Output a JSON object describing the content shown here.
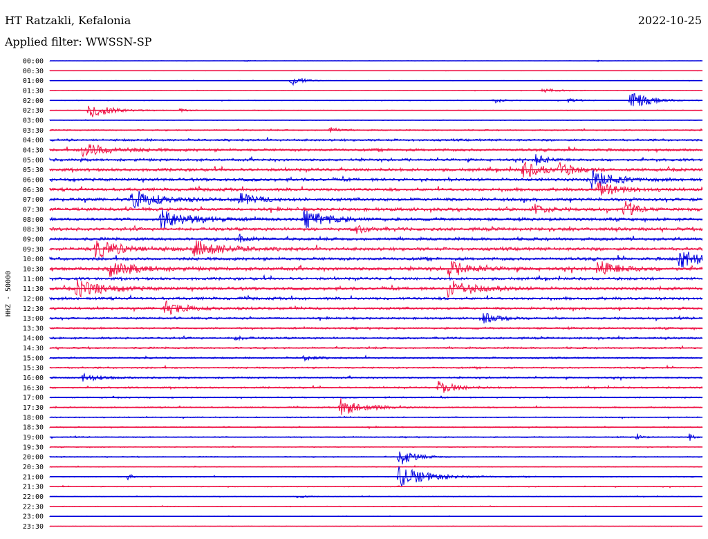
{
  "header": {
    "station": "HT Ratzakli, Kefalonia",
    "filter": "Applied filter: WWSSN-SP",
    "date": "2022-10-25"
  },
  "chart_data": {
    "type": "line",
    "subtype": "helicorder",
    "ylabel": "HHZ - 50000",
    "row_labels": [
      "00:00",
      "00:30",
      "01:00",
      "01:30",
      "02:00",
      "02:30",
      "03:00",
      "03:30",
      "04:00",
      "04:30",
      "05:00",
      "05:30",
      "06:00",
      "06:30",
      "07:00",
      "07:30",
      "08:00",
      "08:30",
      "09:00",
      "09:30",
      "10:00",
      "10:30",
      "11:00",
      "11:30",
      "12:00",
      "12:30",
      "13:00",
      "13:30",
      "14:00",
      "14:30",
      "15:00",
      "15:30",
      "16:00",
      "16:30",
      "17:00",
      "17:30",
      "18:00",
      "18:30",
      "19:00",
      "19:30",
      "20:00",
      "20:30",
      "21:00",
      "21:30",
      "22:00",
      "22:30",
      "23:00",
      "23:30"
    ],
    "colors": {
      "even_rows": "#0000dd",
      "odd_rows": "#ee1144"
    },
    "noise_level": [
      0.2,
      0.2,
      0.3,
      0.3,
      0.4,
      0.4,
      0.4,
      0.8,
      1.3,
      1.6,
      1.5,
      1.8,
      1.8,
      1.8,
      1.9,
      1.9,
      1.8,
      1.9,
      1.8,
      1.9,
      1.8,
      2.0,
      1.6,
      1.8,
      1.6,
      1.5,
      1.3,
      1.2,
      1.2,
      1.1,
      1.0,
      1.0,
      1.0,
      1.0,
      0.8,
      0.8,
      0.7,
      0.7,
      0.7,
      0.6,
      0.6,
      0.5,
      0.6,
      0.5,
      0.4,
      0.4,
      0.3,
      0.3
    ],
    "events": [
      {
        "row": 0,
        "pos": 0.3,
        "amp": 1.5,
        "dur": 0.004
      },
      {
        "row": 0,
        "pos": 0.84,
        "amp": 1.5,
        "dur": 0.004
      },
      {
        "row": 2,
        "pos": 0.37,
        "amp": 9.0,
        "dur": 0.015
      },
      {
        "row": 3,
        "pos": 0.755,
        "amp": 3.0,
        "dur": 0.025
      },
      {
        "row": 4,
        "pos": 0.68,
        "amp": 4.5,
        "dur": 0.012
      },
      {
        "row": 4,
        "pos": 0.795,
        "amp": 4.0,
        "dur": 0.01
      },
      {
        "row": 4,
        "pos": 0.89,
        "amp": 16.0,
        "dur": 0.025
      },
      {
        "row": 5,
        "pos": 0.06,
        "amp": 12.0,
        "dur": 0.03
      },
      {
        "row": 5,
        "pos": 0.2,
        "amp": 3.0,
        "dur": 0.01
      },
      {
        "row": 7,
        "pos": 0.43,
        "amp": 5.0,
        "dur": 0.01
      },
      {
        "row": 9,
        "pos": 0.05,
        "amp": 10.0,
        "dur": 0.04
      },
      {
        "row": 10,
        "pos": 0.745,
        "amp": 8.0,
        "dur": 0.015
      },
      {
        "row": 11,
        "pos": 0.725,
        "amp": 12.0,
        "dur": 0.025
      },
      {
        "row": 11,
        "pos": 0.78,
        "amp": 10.0,
        "dur": 0.02
      },
      {
        "row": 12,
        "pos": 0.83,
        "amp": 14.0,
        "dur": 0.03
      },
      {
        "row": 13,
        "pos": 0.84,
        "amp": 10.0,
        "dur": 0.03
      },
      {
        "row": 14,
        "pos": 0.125,
        "amp": 14.0,
        "dur": 0.035
      },
      {
        "row": 14,
        "pos": 0.29,
        "amp": 8.0,
        "dur": 0.025
      },
      {
        "row": 15,
        "pos": 0.74,
        "amp": 10.0,
        "dur": 0.015
      },
      {
        "row": 15,
        "pos": 0.88,
        "amp": 12.0,
        "dur": 0.015
      },
      {
        "row": 16,
        "pos": 0.17,
        "amp": 14.0,
        "dur": 0.04
      },
      {
        "row": 16,
        "pos": 0.39,
        "amp": 12.0,
        "dur": 0.035
      },
      {
        "row": 17,
        "pos": 0.47,
        "amp": 6.0,
        "dur": 0.015
      },
      {
        "row": 18,
        "pos": 0.29,
        "amp": 6.0,
        "dur": 0.015
      },
      {
        "row": 19,
        "pos": 0.07,
        "amp": 12.0,
        "dur": 0.04
      },
      {
        "row": 19,
        "pos": 0.22,
        "amp": 12.0,
        "dur": 0.04
      },
      {
        "row": 20,
        "pos": 0.965,
        "amp": 14.0,
        "dur": 0.035
      },
      {
        "row": 21,
        "pos": 0.09,
        "amp": 10.0,
        "dur": 0.04
      },
      {
        "row": 21,
        "pos": 0.61,
        "amp": 12.0,
        "dur": 0.03
      },
      {
        "row": 21,
        "pos": 0.84,
        "amp": 12.0,
        "dur": 0.03
      },
      {
        "row": 23,
        "pos": 0.04,
        "amp": 12.0,
        "dur": 0.04
      },
      {
        "row": 23,
        "pos": 0.61,
        "amp": 12.0,
        "dur": 0.04
      },
      {
        "row": 25,
        "pos": 0.175,
        "amp": 10.0,
        "dur": 0.03
      },
      {
        "row": 26,
        "pos": 0.665,
        "amp": 8.0,
        "dur": 0.02
      },
      {
        "row": 28,
        "pos": 0.285,
        "amp": 4.0,
        "dur": 0.01
      },
      {
        "row": 30,
        "pos": 0.39,
        "amp": 5.0,
        "dur": 0.015
      },
      {
        "row": 32,
        "pos": 0.05,
        "amp": 6.0,
        "dur": 0.025
      },
      {
        "row": 33,
        "pos": 0.595,
        "amp": 10.0,
        "dur": 0.025
      },
      {
        "row": 35,
        "pos": 0.445,
        "amp": 12.0,
        "dur": 0.035
      },
      {
        "row": 38,
        "pos": 0.9,
        "amp": 5.0,
        "dur": 0.006
      },
      {
        "row": 38,
        "pos": 0.98,
        "amp": 6.0,
        "dur": 0.006
      },
      {
        "row": 40,
        "pos": 0.535,
        "amp": 14.0,
        "dur": 0.02
      },
      {
        "row": 42,
        "pos": 0.535,
        "amp": 16.0,
        "dur": 0.04
      },
      {
        "row": 42,
        "pos": 0.12,
        "amp": 5.0,
        "dur": 0.006
      },
      {
        "row": 44,
        "pos": 0.38,
        "amp": 3.0,
        "dur": 0.01
      }
    ]
  }
}
